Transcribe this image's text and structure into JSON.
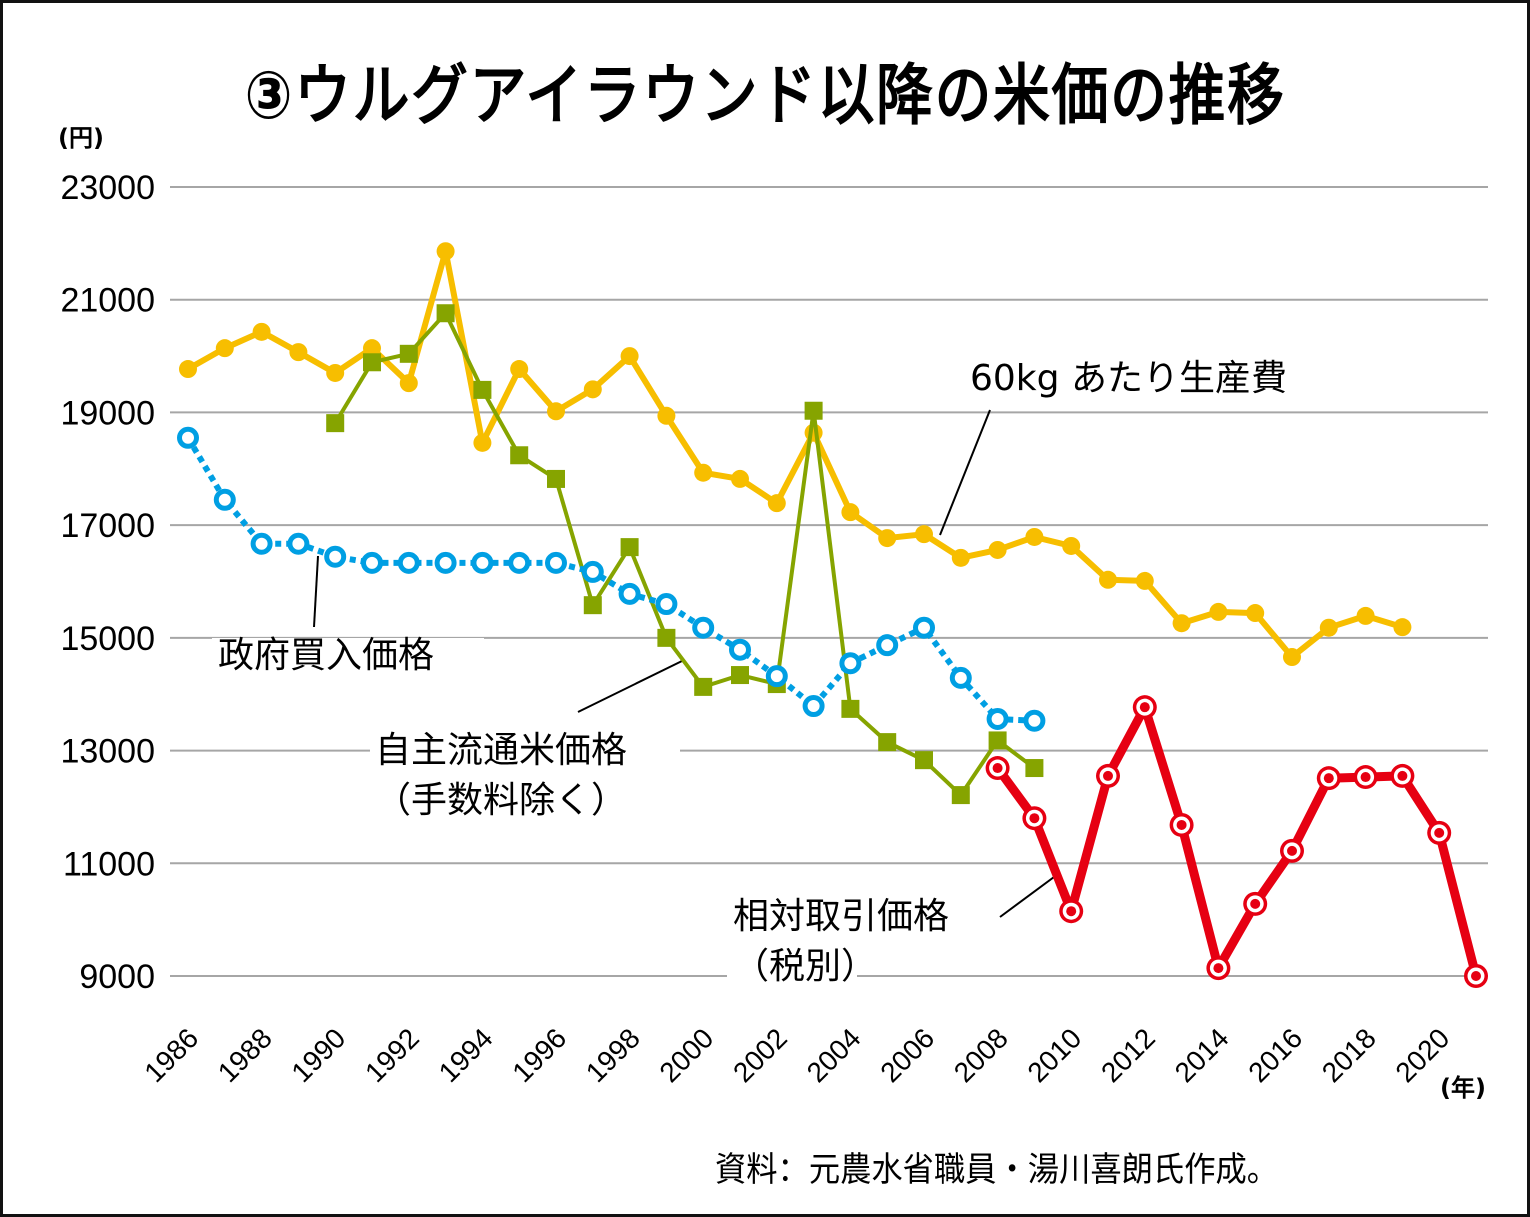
{
  "title": "③ウルグアイラウンド以降の米価の推移",
  "y_unit": "(円)",
  "x_unit": "(年)",
  "source": "資料：元農水省職員・湯川喜朗氏作成。",
  "colors": {
    "production_cost": "#F7BE00",
    "gov_purchase": "#009FE3",
    "voluntary": "#86A400",
    "relative": "#E60012",
    "grid": "#A6A6A6"
  },
  "chart_data": {
    "type": "line",
    "title": "③ウルグアイラウンド以降の米価の推移",
    "xlabel": "(年)",
    "ylabel": "(円)",
    "ylim": [
      9000,
      23000
    ],
    "xlim": [
      1986,
      2021
    ],
    "yticks": [
      23000,
      21000,
      19000,
      17000,
      15000,
      13000,
      11000,
      9000
    ],
    "xticks": [
      "1986",
      "1988",
      "1990",
      "1992",
      "1994",
      "1996",
      "1998",
      "2000",
      "2002",
      "2004",
      "2006",
      "2008",
      "2010",
      "2012",
      "2014",
      "2016",
      "2018",
      "2020"
    ],
    "grid": true,
    "series": [
      {
        "name": "60kg あたり生産費",
        "key": "production_cost",
        "marker": "filled-circle",
        "x": [
          1986,
          1987,
          1988,
          1989,
          1990,
          1991,
          1992,
          1993,
          1994,
          1995,
          1996,
          1997,
          1998,
          1999,
          2000,
          2001,
          2002,
          2003,
          2004,
          2005,
          2006,
          2007,
          2008,
          2009,
          2010,
          2011,
          2012,
          2013,
          2014,
          2015,
          2016,
          2017,
          2018,
          2019
        ],
        "values": [
          19770,
          20140,
          20430,
          20070,
          19700,
          20140,
          19520,
          21860,
          18460,
          19770,
          19020,
          19410,
          20000,
          18940,
          17930,
          17820,
          17390,
          18640,
          17230,
          16770,
          16840,
          16420,
          16560,
          16790,
          16630,
          16030,
          16010,
          15260,
          15460,
          15440,
          14660,
          15180,
          15390,
          15190
        ]
      },
      {
        "name": "政府買入価格",
        "key": "gov_purchase",
        "marker": "open-circle",
        "line": "dotted",
        "x": [
          1986,
          1987,
          1988,
          1989,
          1990,
          1991,
          1992,
          1993,
          1994,
          1995,
          1996,
          1997,
          1998,
          1999,
          2000,
          2001,
          2002,
          2003,
          2004,
          2005,
          2006,
          2007,
          2008,
          2009
        ],
        "values": [
          18550,
          17450,
          16670,
          16670,
          16440,
          16330,
          16330,
          16330,
          16330,
          16330,
          16330,
          16170,
          15780,
          15600,
          15180,
          14790,
          14320,
          13790,
          14550,
          14870,
          15180,
          14290,
          13560,
          13530
        ]
      },
      {
        "name": "自主流通米価格（手数料除く）",
        "key": "voluntary",
        "marker": "square",
        "x": [
          1990,
          1991,
          1992,
          1993,
          1994,
          1995,
          1996,
          1997,
          1998,
          1999,
          2000,
          2001,
          2002,
          2003,
          2004,
          2005,
          2006,
          2007,
          2008,
          2009
        ],
        "values": [
          18810,
          19890,
          20040,
          20760,
          19400,
          18240,
          17820,
          15580,
          16610,
          15000,
          14130,
          14340,
          14180,
          19030,
          13740,
          13150,
          12830,
          12210,
          13180,
          12690
        ]
      },
      {
        "name": "相対取引価格（税別）",
        "key": "relative",
        "marker": "ring-dot",
        "x": [
          2008,
          2009,
          2010,
          2011,
          2012,
          2013,
          2014,
          2015,
          2016,
          2017,
          2018,
          2019,
          2020,
          2021
        ],
        "values": [
          12690,
          11800,
          10150,
          12550,
          13770,
          11680,
          9140,
          10280,
          11220,
          12510,
          12530,
          12550,
          11540,
          9000
        ]
      }
    ],
    "annotations": [
      {
        "key": "production_cost",
        "lines": [
          "60kg あたり生産費"
        ]
      },
      {
        "key": "gov_purchase",
        "lines": [
          "政府買入価格"
        ]
      },
      {
        "key": "voluntary",
        "lines": [
          "自主流通米価格",
          "（手数料除く）"
        ]
      },
      {
        "key": "relative",
        "lines": [
          "相対取引価格",
          "（税別）"
        ]
      }
    ]
  }
}
